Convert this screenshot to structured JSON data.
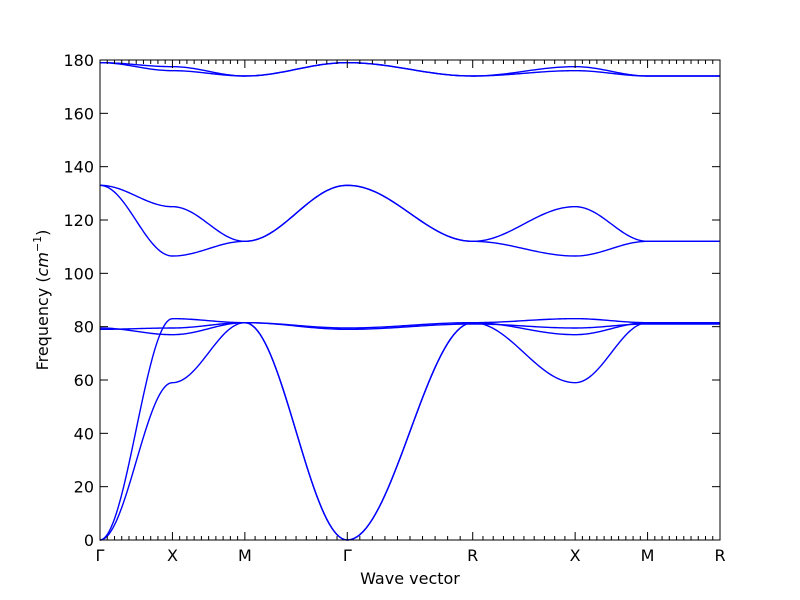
{
  "chart_data": {
    "type": "line",
    "title": "",
    "xlabel": "Wave vector",
    "ylabel_text": "Frequency (",
    "ylabel_unit": "cm",
    "ylabel_exp": "−1",
    "ylabel_close": ")",
    "ylim": [
      0,
      180
    ],
    "yticks": [
      0,
      20,
      40,
      60,
      80,
      100,
      120,
      140,
      160,
      180
    ],
    "high_symmetry_points": [
      {
        "label": "Γ",
        "x": 0.0
      },
      {
        "label": "X",
        "x": 0.5
      },
      {
        "label": "M",
        "x": 1.0
      },
      {
        "label": "Γ",
        "x": 1.7071
      },
      {
        "label": "R",
        "x": 2.5731
      },
      {
        "label": "X",
        "x": 3.2802
      },
      {
        "label": "M",
        "x": 3.7802
      },
      {
        "label": "R",
        "x": 4.2802
      }
    ],
    "xlim": [
      0,
      4.2802
    ],
    "minor_ticks_per_segment": [
      10,
      10,
      10,
      10,
      10,
      10,
      10
    ],
    "line_color": "#0000ff",
    "series": [
      {
        "values": [
          [
            0,
            0.0
          ],
          [
            0.5,
            59.0
          ],
          [
            1.0,
            81.5
          ],
          [
            1.7071,
            0.0
          ],
          [
            2.5731,
            81.5
          ],
          [
            3.2802,
            59.0
          ],
          [
            3.7802,
            81.5
          ],
          [
            4.2802,
            81.5
          ]
        ]
      },
      {
        "values": [
          [
            0,
            0.0
          ],
          [
            0.5,
            83.0
          ],
          [
            1.0,
            81.5
          ],
          [
            1.7071,
            0.0
          ],
          [
            2.5731,
            81.5
          ],
          [
            3.2802,
            83.0
          ],
          [
            3.7802,
            81.5
          ],
          [
            4.2802,
            81.5
          ]
        ]
      },
      {
        "values": [
          [
            0,
            79.5
          ],
          [
            0.5,
            77.0
          ],
          [
            1.0,
            81.5
          ],
          [
            1.7071,
            79.5
          ],
          [
            2.5731,
            81.5
          ],
          [
            3.2802,
            77.0
          ],
          [
            3.7802,
            81.5
          ],
          [
            4.2802,
            81.5
          ]
        ]
      },
      {
        "values": [
          [
            0,
            79.0
          ],
          [
            0.5,
            79.5
          ],
          [
            1.0,
            81.5
          ],
          [
            1.7071,
            79.0
          ],
          [
            2.5731,
            81.0
          ],
          [
            3.2802,
            79.5
          ],
          [
            3.7802,
            81.0
          ],
          [
            4.2802,
            81.0
          ]
        ]
      },
      {
        "values": [
          [
            0,
            133.0
          ],
          [
            0.5,
            125.0
          ],
          [
            1.0,
            112.0
          ],
          [
            1.7071,
            133.0
          ],
          [
            2.5731,
            112.0
          ],
          [
            3.2802,
            125.0
          ],
          [
            3.7802,
            112.0
          ],
          [
            4.2802,
            112.0
          ]
        ]
      },
      {
        "values": [
          [
            0,
            133.0
          ],
          [
            0.5,
            106.5
          ],
          [
            1.0,
            112.0
          ],
          [
            1.7071,
            133.0
          ],
          [
            2.5731,
            112.0
          ],
          [
            3.2802,
            106.5
          ],
          [
            3.7802,
            112.0
          ],
          [
            4.2802,
            112.0
          ]
        ]
      },
      {
        "values": [
          [
            0,
            179.0
          ],
          [
            0.5,
            176.0
          ],
          [
            1.0,
            174.0
          ],
          [
            1.7071,
            179.0
          ],
          [
            2.5731,
            174.0
          ],
          [
            3.2802,
            176.0
          ],
          [
            3.7802,
            174.0
          ],
          [
            4.2802,
            174.0
          ]
        ]
      },
      {
        "values": [
          [
            0,
            179.0
          ],
          [
            0.5,
            177.5
          ],
          [
            1.0,
            174.0
          ],
          [
            1.7071,
            179.0
          ],
          [
            2.5731,
            174.0
          ],
          [
            3.2802,
            177.5
          ],
          [
            3.7802,
            174.0
          ],
          [
            4.2802,
            174.0
          ]
        ]
      }
    ],
    "grid": false
  }
}
